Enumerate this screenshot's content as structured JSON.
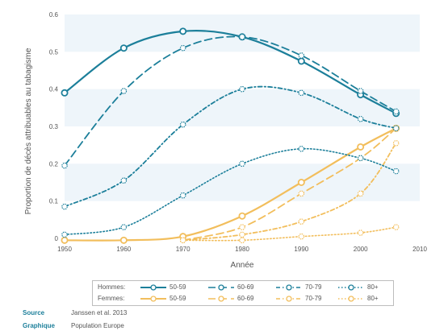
{
  "chart_data": {
    "type": "line",
    "xlabel": "Année",
    "ylabel": "Proportion de décès attribuables au tabagisme",
    "xlim": [
      1950,
      2010
    ],
    "ylim": [
      0,
      0.6
    ],
    "xticks": [
      "1950",
      "1960",
      "1970",
      "1980",
      "1990",
      "2000",
      "2010"
    ],
    "yticks": [
      "0",
      "0.1",
      "0.2",
      "0.3",
      "0.4",
      "0.5",
      "0.6"
    ],
    "x": [
      1950,
      1960,
      1970,
      1980,
      1990,
      2000,
      2006
    ],
    "series": [
      {
        "name": "50-59",
        "group": "Hommes",
        "values": [
          0.39,
          0.51,
          0.555,
          0.54,
          0.475,
          0.385,
          0.335
        ]
      },
      {
        "name": "60-69",
        "group": "Hommes",
        "values": [
          0.195,
          0.395,
          0.51,
          0.54,
          0.49,
          0.395,
          0.34
        ]
      },
      {
        "name": "70-79",
        "group": "Hommes",
        "values": [
          0.085,
          0.155,
          0.305,
          0.4,
          0.39,
          0.32,
          0.295
        ]
      },
      {
        "name": "80+",
        "group": "Hommes",
        "values": [
          0.01,
          0.03,
          0.115,
          0.2,
          0.24,
          0.215,
          0.18
        ]
      },
      {
        "name": "50-59",
        "group": "Femmes",
        "values": [
          -0.005,
          -0.005,
          0.005,
          0.06,
          0.15,
          0.245,
          0.295
        ]
      },
      {
        "name": "60-69",
        "group": "Femmes",
        "values": [
          null,
          null,
          -0.005,
          0.03,
          0.12,
          0.215,
          0.295
        ]
      },
      {
        "name": "70-79",
        "group": "Femmes",
        "values": [
          null,
          null,
          -0.005,
          0.01,
          0.045,
          0.12,
          0.255
        ]
      },
      {
        "name": "80+",
        "group": "Femmes",
        "values": [
          null,
          null,
          -0.005,
          -0.005,
          0.005,
          0.015,
          0.03
        ]
      }
    ]
  },
  "legend": {
    "hommes_label": "Hommes:",
    "femmes_label": "Femmes:",
    "items": [
      "50-59",
      "60-69",
      "70-79",
      "80+"
    ]
  },
  "footer": {
    "source_key": "Source",
    "source_value": "Janssen et al. 2013",
    "graphique_key": "Graphique",
    "graphique_value": "Population Europe"
  },
  "colors": {
    "hommes": "#1c7f9a",
    "femmes": "#f2be5c",
    "band": "#eef5fa",
    "axis_text": "#555555"
  },
  "styles": [
    "solid",
    "dashed",
    "dashdot",
    "dotted"
  ]
}
